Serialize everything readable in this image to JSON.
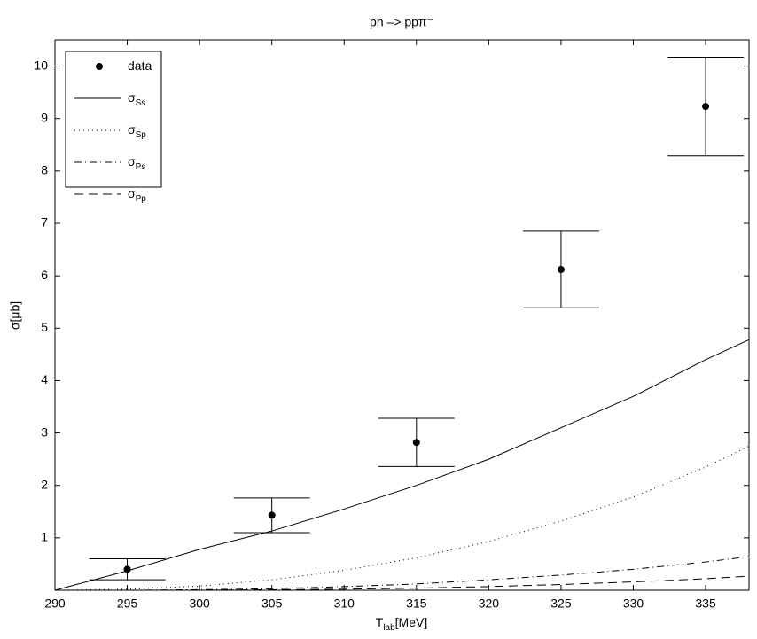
{
  "chart_data": {
    "type": "line",
    "title": "pn –> ppπ⁻",
    "xlabel": {
      "text": "T",
      "sub": "lab",
      "after": "[MeV]"
    },
    "ylabel": "σ[μb]",
    "xlim": [
      290,
      338
    ],
    "ylim": [
      0,
      10.5
    ],
    "xticks": [
      290,
      295,
      300,
      305,
      310,
      315,
      320,
      325,
      330,
      335
    ],
    "yticks": [
      1,
      2,
      3,
      4,
      5,
      6,
      7,
      8,
      9,
      10
    ],
    "legend": "upper left",
    "series": [
      {
        "name": "data",
        "kind": "errorbar",
        "color": "#000000",
        "x": [
          295,
          305,
          315,
          325,
          335
        ],
        "values": [
          0.4,
          1.43,
          2.82,
          6.12,
          9.23
        ],
        "errors": [
          0.2,
          0.33,
          0.46,
          0.73,
          0.94
        ]
      },
      {
        "name": "σ",
        "subscript": "Ss",
        "kind": "curve",
        "dash": "solid",
        "color": "#000000",
        "x": [
          290,
          295,
          300,
          305,
          310,
          315,
          320,
          325,
          330,
          335,
          338
        ],
        "values": [
          0,
          0.37,
          0.78,
          1.13,
          1.55,
          2.0,
          2.5,
          3.1,
          3.7,
          4.4,
          4.78
        ]
      },
      {
        "name": "σ",
        "subscript": "Sp",
        "kind": "curve",
        "dash": "dotted",
        "color": "#000000",
        "x": [
          290,
          295,
          300,
          305,
          310,
          315,
          320,
          325,
          330,
          335,
          338
        ],
        "values": [
          0,
          0.02,
          0.08,
          0.2,
          0.38,
          0.62,
          0.93,
          1.32,
          1.78,
          2.35,
          2.75
        ]
      },
      {
        "name": "σ",
        "subscript": "Ps",
        "kind": "curve",
        "dash": "dashdot",
        "color": "#000000",
        "x": [
          290,
          295,
          300,
          305,
          310,
          315,
          320,
          325,
          330,
          335,
          338
        ],
        "values": [
          0,
          0,
          0.01,
          0.03,
          0.07,
          0.12,
          0.2,
          0.29,
          0.4,
          0.54,
          0.64
        ]
      },
      {
        "name": "σ",
        "subscript": "Pp",
        "kind": "curve",
        "dash": "dashed",
        "color": "#000000",
        "x": [
          290,
          295,
          300,
          305,
          310,
          315,
          320,
          325,
          330,
          335,
          338
        ],
        "values": [
          0,
          0,
          0,
          0.01,
          0.02,
          0.04,
          0.07,
          0.11,
          0.16,
          0.22,
          0.27
        ]
      }
    ]
  }
}
